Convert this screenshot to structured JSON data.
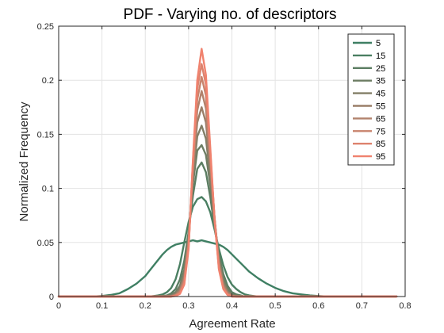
{
  "chart_data": {
    "type": "line",
    "title": "PDF - Varying no. of descriptors",
    "xlabel": "Agreement Rate",
    "ylabel": "Normalized Frequency",
    "xlim": [
      0,
      0.8
    ],
    "ylim": [
      0,
      0.25
    ],
    "x_ticks": [
      "0",
      "0.1",
      "0.2",
      "0.3",
      "0.4",
      "0.5",
      "0.6",
      "0.7",
      "0.8"
    ],
    "y_ticks": [
      "0",
      "0.05",
      "0.1",
      "0.15",
      "0.2",
      "0.25"
    ],
    "grid": true,
    "legend_position": "top-right",
    "x": [
      0.0,
      0.02,
      0.04,
      0.06,
      0.08,
      0.1,
      0.12,
      0.14,
      0.16,
      0.18,
      0.2,
      0.21,
      0.22,
      0.23,
      0.24,
      0.25,
      0.26,
      0.27,
      0.28,
      0.29,
      0.3,
      0.31,
      0.32,
      0.33,
      0.34,
      0.35,
      0.36,
      0.37,
      0.38,
      0.39,
      0.4,
      0.41,
      0.42,
      0.43,
      0.44,
      0.45,
      0.46,
      0.48,
      0.5,
      0.52,
      0.54,
      0.56,
      0.58,
      0.6,
      0.62,
      0.64,
      0.66,
      0.68,
      0.7,
      0.72,
      0.74,
      0.76,
      0.78
    ],
    "series": [
      {
        "name": "5",
        "color": "#3f7f63",
        "values": [
          0,
          0,
          0,
          0,
          0,
          0.0005,
          0.0015,
          0.003,
          0.007,
          0.012,
          0.019,
          0.024,
          0.029,
          0.034,
          0.039,
          0.043,
          0.046,
          0.048,
          0.049,
          0.05,
          0.051,
          0.052,
          0.051,
          0.052,
          0.051,
          0.05,
          0.049,
          0.048,
          0.046,
          0.043,
          0.039,
          0.035,
          0.031,
          0.027,
          0.023,
          0.02,
          0.017,
          0.012,
          0.008,
          0.005,
          0.003,
          0.002,
          0.001,
          0.0005,
          0,
          0,
          0,
          0,
          0,
          0,
          0,
          0,
          0
        ]
      },
      {
        "name": "15",
        "color": "#4a7f62",
        "values": [
          0,
          0,
          0,
          0,
          0,
          0,
          0,
          0,
          0,
          0,
          0,
          0,
          0.0005,
          0.001,
          0.002,
          0.004,
          0.008,
          0.016,
          0.03,
          0.05,
          0.069,
          0.083,
          0.09,
          0.092,
          0.088,
          0.078,
          0.062,
          0.044,
          0.029,
          0.018,
          0.011,
          0.007,
          0.004,
          0.002,
          0.001,
          0.0005,
          0,
          0,
          0,
          0,
          0,
          0,
          0,
          0,
          0,
          0,
          0,
          0,
          0,
          0,
          0,
          0,
          0
        ]
      },
      {
        "name": "25",
        "color": "#5b7d62",
        "values": [
          0,
          0,
          0,
          0,
          0,
          0,
          0,
          0,
          0,
          0,
          0,
          0,
          0,
          0,
          0.0005,
          0.001,
          0.003,
          0.007,
          0.016,
          0.033,
          0.06,
          0.093,
          0.118,
          0.124,
          0.115,
          0.092,
          0.064,
          0.039,
          0.021,
          0.01,
          0.004,
          0.002,
          0.001,
          0,
          0,
          0,
          0,
          0,
          0,
          0,
          0,
          0,
          0,
          0,
          0,
          0,
          0,
          0,
          0,
          0,
          0,
          0,
          0
        ]
      },
      {
        "name": "35",
        "color": "#6d7d63",
        "values": [
          0,
          0,
          0,
          0,
          0,
          0,
          0,
          0,
          0,
          0,
          0,
          0,
          0,
          0,
          0,
          0.0005,
          0.0015,
          0.004,
          0.01,
          0.025,
          0.058,
          0.104,
          0.135,
          0.14,
          0.131,
          0.103,
          0.068,
          0.037,
          0.017,
          0.007,
          0.002,
          0.001,
          0,
          0,
          0,
          0,
          0,
          0,
          0,
          0,
          0,
          0,
          0,
          0,
          0,
          0,
          0,
          0,
          0,
          0,
          0,
          0,
          0
        ]
      },
      {
        "name": "45",
        "color": "#827e66",
        "values": [
          0,
          0,
          0,
          0,
          0,
          0,
          0,
          0,
          0,
          0,
          0,
          0,
          0,
          0,
          0,
          0,
          0.001,
          0.003,
          0.008,
          0.021,
          0.055,
          0.11,
          0.148,
          0.158,
          0.146,
          0.111,
          0.071,
          0.035,
          0.014,
          0.005,
          0.0015,
          0,
          0,
          0,
          0,
          0,
          0,
          0,
          0,
          0,
          0,
          0,
          0,
          0,
          0,
          0,
          0,
          0,
          0,
          0,
          0,
          0,
          0
        ]
      },
      {
        "name": "55",
        "color": "#9a7f69",
        "values": [
          0,
          0,
          0,
          0,
          0,
          0,
          0,
          0,
          0,
          0,
          0,
          0,
          0,
          0,
          0,
          0,
          0.0005,
          0.002,
          0.006,
          0.018,
          0.052,
          0.115,
          0.161,
          0.175,
          0.161,
          0.119,
          0.072,
          0.032,
          0.012,
          0.004,
          0.001,
          0,
          0,
          0,
          0,
          0,
          0,
          0,
          0,
          0,
          0,
          0,
          0,
          0,
          0,
          0,
          0,
          0,
          0,
          0,
          0,
          0,
          0
        ]
      },
      {
        "name": "65",
        "color": "#b2826c",
        "values": [
          0,
          0,
          0,
          0,
          0,
          0,
          0,
          0,
          0,
          0,
          0,
          0,
          0,
          0,
          0,
          0,
          0,
          0.0015,
          0.005,
          0.016,
          0.05,
          0.118,
          0.172,
          0.19,
          0.174,
          0.125,
          0.073,
          0.03,
          0.01,
          0.003,
          0.0005,
          0,
          0,
          0,
          0,
          0,
          0,
          0,
          0,
          0,
          0,
          0,
          0,
          0,
          0,
          0,
          0,
          0,
          0,
          0,
          0,
          0,
          0
        ]
      },
      {
        "name": "75",
        "color": "#c8836c",
        "values": [
          0,
          0,
          0,
          0,
          0,
          0,
          0,
          0,
          0,
          0,
          0,
          0,
          0,
          0,
          0,
          0,
          0,
          0.001,
          0.004,
          0.014,
          0.048,
          0.121,
          0.182,
          0.203,
          0.186,
          0.13,
          0.073,
          0.028,
          0.009,
          0.002,
          0.0005,
          0,
          0,
          0,
          0,
          0,
          0,
          0,
          0,
          0,
          0,
          0,
          0,
          0,
          0,
          0,
          0,
          0,
          0,
          0,
          0,
          0,
          0
        ]
      },
      {
        "name": "85",
        "color": "#dd836e",
        "values": [
          0,
          0,
          0,
          0,
          0,
          0,
          0,
          0,
          0,
          0,
          0,
          0,
          0,
          0,
          0,
          0,
          0,
          0.001,
          0.003,
          0.012,
          0.046,
          0.124,
          0.192,
          0.215,
          0.196,
          0.134,
          0.072,
          0.026,
          0.008,
          0.002,
          0,
          0,
          0,
          0,
          0,
          0,
          0,
          0,
          0,
          0,
          0,
          0,
          0,
          0,
          0,
          0,
          0,
          0,
          0,
          0,
          0,
          0,
          0
        ]
      },
      {
        "name": "95",
        "color": "#f0826e",
        "values": [
          0,
          0,
          0,
          0,
          0,
          0,
          0,
          0,
          0,
          0,
          0,
          0,
          0,
          0,
          0,
          0,
          0,
          0.0005,
          0.0025,
          0.011,
          0.044,
          0.126,
          0.2,
          0.229,
          0.205,
          0.138,
          0.071,
          0.025,
          0.007,
          0.0015,
          0,
          0,
          0,
          0,
          0,
          0,
          0,
          0,
          0,
          0,
          0,
          0,
          0,
          0,
          0,
          0,
          0,
          0,
          0,
          0,
          0,
          0,
          0
        ]
      }
    ]
  }
}
